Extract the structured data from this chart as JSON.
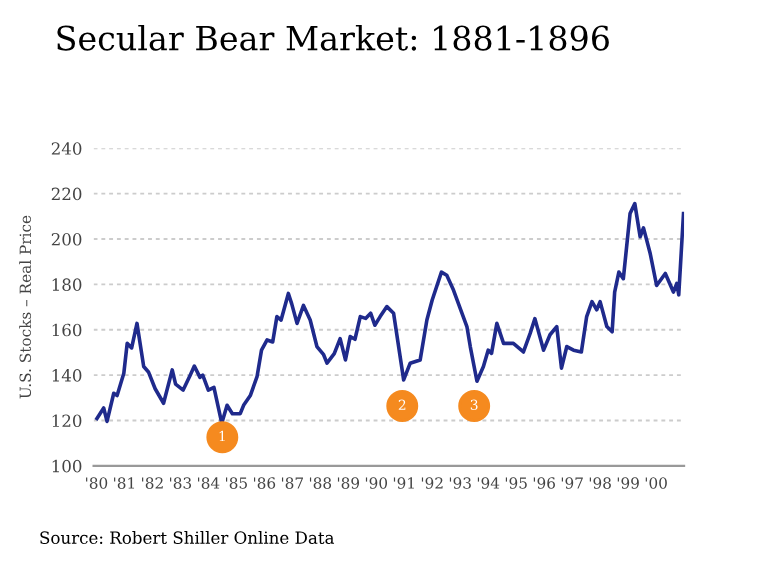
{
  "chart_data": {
    "type": "line",
    "title": "Secular Bear Market: 1881-1896",
    "ylabel": "U.S. Stocks – Real Price",
    "x": [
      1880.02,
      1880.26,
      1880.38,
      1880.62,
      1880.74,
      1880.98,
      1881.1,
      1881.26,
      1881.45,
      1881.69,
      1881.86,
      1882.1,
      1882.4,
      1882.71,
      1882.83,
      1883.1,
      1883.36,
      1883.5,
      1883.7,
      1883.8,
      1884.0,
      1884.2,
      1884.48,
      1884.67,
      1884.86,
      1885.14,
      1885.26,
      1885.5,
      1885.74,
      1885.9,
      1886.1,
      1886.3,
      1886.45,
      1886.6,
      1886.86,
      1886.98,
      1887.17,
      1887.4,
      1887.64,
      1887.88,
      1888.12,
      1888.24,
      1888.5,
      1888.71,
      1888.9,
      1889.07,
      1889.24,
      1889.43,
      1889.62,
      1889.8,
      1889.95,
      1890.14,
      1890.38,
      1890.62,
      1890.98,
      1891.21,
      1891.57,
      1891.81,
      1892.0,
      1892.33,
      1892.52,
      1892.76,
      1893.24,
      1893.36,
      1893.6,
      1893.83,
      1894.0,
      1894.12,
      1894.31,
      1894.55,
      1894.9,
      1895.26,
      1895.5,
      1895.67,
      1895.98,
      1896.21,
      1896.45,
      1896.62,
      1896.81,
      1897.05,
      1897.33,
      1897.52,
      1897.71,
      1897.88,
      1898.0,
      1898.24,
      1898.43,
      1898.52,
      1898.67,
      1898.83,
      1899.07,
      1899.24,
      1899.43,
      1899.55,
      1899.79,
      1900.02,
      1900.33,
      1900.62,
      1900.74,
      1900.81,
      1900.98
    ],
    "series": [
      {
        "color": "#1f2a8c",
        "values": [
          120.9,
          125.5,
          119.6,
          132,
          131,
          140.8,
          154,
          152,
          162.8,
          143.8,
          141.4,
          134,
          127.6,
          142.3,
          136,
          133.4,
          140.2,
          144,
          139,
          140,
          133.4,
          134.6,
          118.8,
          126.7,
          123,
          123,
          126.7,
          131,
          139.3,
          151,
          155.5,
          154.6,
          165.8,
          164.3,
          176,
          171.4,
          162.8,
          170.7,
          164.3,
          152.6,
          149,
          145.3,
          149.5,
          156.1,
          146.7,
          157,
          155.8,
          165.8,
          165,
          167.3,
          162,
          165.8,
          170.2,
          167.3,
          137.9,
          145.2,
          146.7,
          164.3,
          173.1,
          185.4,
          184,
          177.5,
          161.4,
          152.6,
          137.3,
          143.8,
          151,
          149.6,
          162.8,
          154,
          154,
          150.2,
          158.4,
          164.9,
          151,
          157.8,
          161.4,
          143.1,
          152.6,
          151,
          150.2,
          165.8,
          172.4,
          168.8,
          172.4,
          161.4,
          159.1,
          176.6,
          185.4,
          182.5,
          211.2,
          215.6,
          201,
          204.9,
          193.6,
          179.5,
          184.8,
          176.6,
          180.4,
          175.4,
          211.2
        ]
      }
    ],
    "xlim": [
      1879.9,
      1901
    ],
    "xticks": [
      {
        "value": 1880,
        "label": "'80"
      },
      {
        "value": 1881,
        "label": "'81"
      },
      {
        "value": 1882,
        "label": "'82"
      },
      {
        "value": 1883,
        "label": "'83"
      },
      {
        "value": 1884,
        "label": "'84"
      },
      {
        "value": 1885,
        "label": "'85"
      },
      {
        "value": 1886,
        "label": "'86"
      },
      {
        "value": 1887,
        "label": "'87"
      },
      {
        "value": 1888,
        "label": "'88"
      },
      {
        "value": 1889,
        "label": "'89"
      },
      {
        "value": 1890,
        "label": "'90"
      },
      {
        "value": 1891,
        "label": "'91"
      },
      {
        "value": 1892,
        "label": "'92"
      },
      {
        "value": 1893,
        "label": "'93"
      },
      {
        "value": 1894,
        "label": "'94"
      },
      {
        "value": 1895,
        "label": "'95"
      },
      {
        "value": 1896,
        "label": "'96"
      },
      {
        "value": 1897,
        "label": "'97"
      },
      {
        "value": 1898,
        "label": "'98"
      },
      {
        "value": 1899,
        "label": "'99"
      },
      {
        "value": 1900,
        "label": "'00"
      }
    ],
    "ylim": [
      100,
      240
    ],
    "yticks": [
      100,
      120,
      140,
      160,
      180,
      200,
      220,
      240
    ],
    "grid": "y",
    "marker": "none",
    "line_style": "solid",
    "annotations": [
      {
        "text": "1",
        "x": 1884.5,
        "y": 112.6
      },
      {
        "text": "2",
        "x": 1890.93,
        "y": 126.4
      },
      {
        "text": "3",
        "x": 1893.5,
        "y": 126.4
      },
      "Source: Robert Shiller Online Data"
    ]
  }
}
